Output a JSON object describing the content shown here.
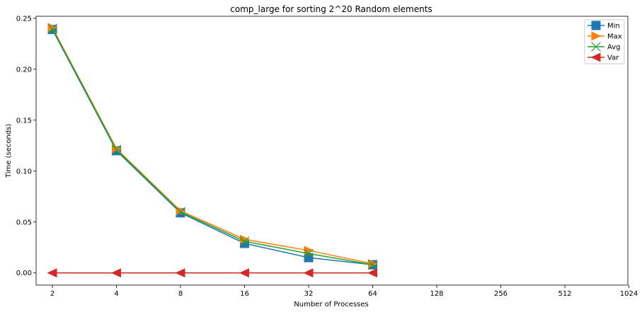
{
  "chart_data": {
    "type": "line",
    "title": "comp_large for sorting 2^20 Random elements",
    "xlabel": "Number of Processes",
    "ylabel": "Time (seconds)",
    "categories": [
      "2",
      "4",
      "8",
      "16",
      "32",
      "64",
      "128",
      "256",
      "512",
      "1024"
    ],
    "y_ticks": [
      "0.00",
      "0.05",
      "0.10",
      "0.15",
      "0.20",
      "0.25"
    ],
    "ylim": [
      -0.012,
      0.252
    ],
    "grid": false,
    "legend_position": "top-right",
    "series": [
      {
        "name": "Min",
        "color": "#1f77b4",
        "marker": "square",
        "values": [
          0.239,
          0.12,
          0.059,
          0.029,
          0.015,
          0.008,
          null,
          null,
          null,
          null
        ]
      },
      {
        "name": "Max",
        "color": "#ff7f0e",
        "marker": "triangle-right",
        "values": [
          0.241,
          0.122,
          0.061,
          0.033,
          0.022,
          0.009,
          null,
          null,
          null,
          null
        ]
      },
      {
        "name": "Avg",
        "color": "#2ca02c",
        "marker": "x",
        "values": [
          0.24,
          0.121,
          0.06,
          0.031,
          0.019,
          0.008,
          null,
          null,
          null,
          null
        ]
      },
      {
        "name": "Var",
        "color": "#d62728",
        "marker": "triangle-left",
        "values": [
          0.0,
          0.0,
          0.0,
          0.0,
          0.0,
          0.0,
          null,
          null,
          null,
          null
        ]
      }
    ]
  }
}
